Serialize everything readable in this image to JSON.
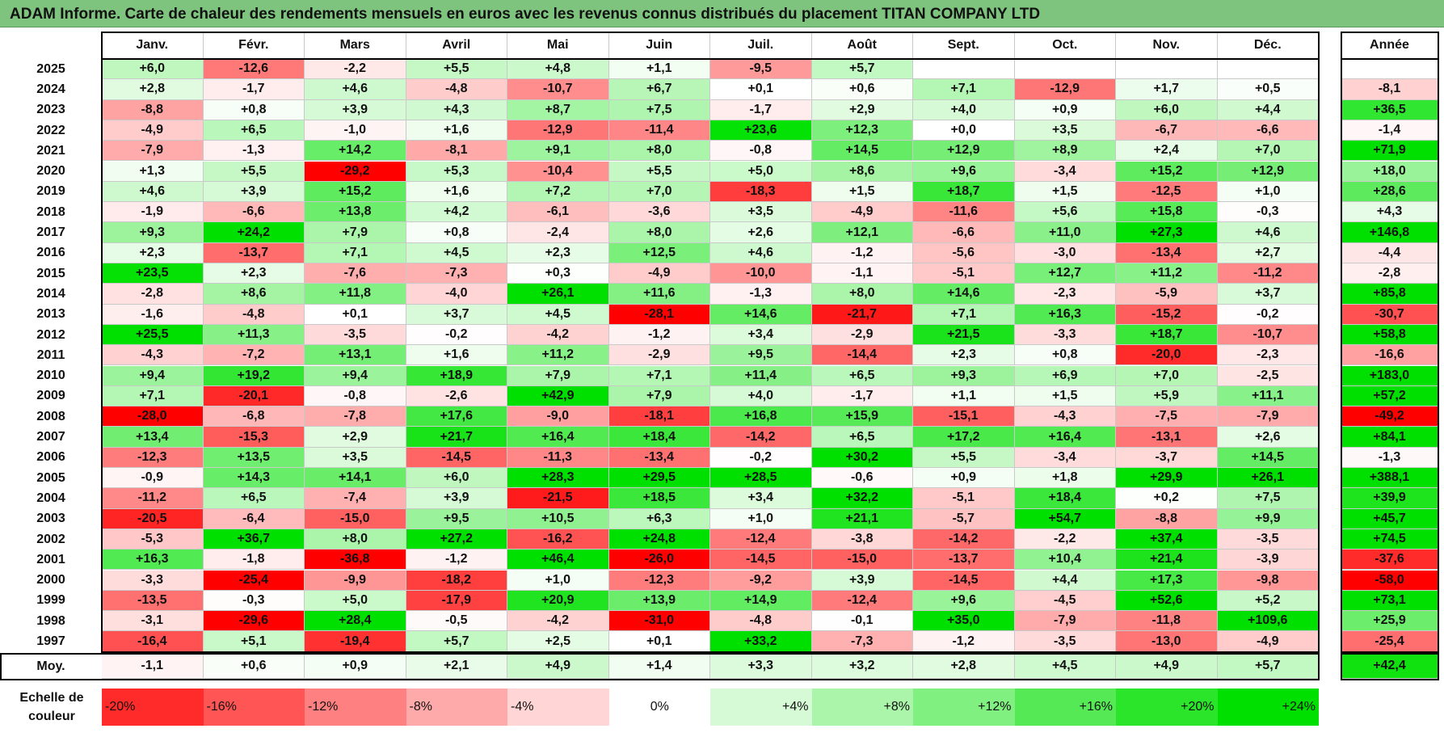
{
  "title": "ADAM Informe. Carte de chaleur des rendements mensuels en euros avec les revenus connus distribués du placement TITAN COMPANY LTD",
  "chart_data": {
    "type": "heatmap",
    "title": "ADAM Informe. Carte de chaleur des rendements mensuels en euros avec les revenus connus distribués du placement TITAN COMPANY LTD",
    "columns": [
      "Janv.",
      "Févr.",
      "Mars",
      "Avril",
      "Mai",
      "Juin",
      "Juil.",
      "Août",
      "Sept.",
      "Oct.",
      "Nov.",
      "Déc."
    ],
    "year_column": "Année",
    "rows": [
      {
        "year": "2025",
        "values": [
          "+6,0",
          "-12,6",
          "-2,2",
          "+5,5",
          "+4,8",
          "+1,1",
          "-9,5",
          "+5,7",
          "",
          "",
          "",
          ""
        ],
        "annual": ""
      },
      {
        "year": "2024",
        "values": [
          "+2,8",
          "-1,7",
          "+4,6",
          "-4,8",
          "-10,7",
          "+6,7",
          "+0,1",
          "+0,6",
          "+7,1",
          "-12,9",
          "+1,7",
          "+0,5"
        ],
        "annual": "-8,1"
      },
      {
        "year": "2023",
        "values": [
          "-8,8",
          "+0,8",
          "+3,9",
          "+4,3",
          "+8,7",
          "+7,5",
          "-1,7",
          "+2,9",
          "+4,0",
          "+0,9",
          "+6,0",
          "+4,4"
        ],
        "annual": "+36,5"
      },
      {
        "year": "2022",
        "values": [
          "-4,9",
          "+6,5",
          "-1,0",
          "+1,6",
          "-12,9",
          "-11,4",
          "+23,6",
          "+12,3",
          "+0,0",
          "+3,5",
          "-6,7",
          "-6,6"
        ],
        "annual": "-1,4"
      },
      {
        "year": "2021",
        "values": [
          "-7,9",
          "-1,3",
          "+14,2",
          "-8,1",
          "+9,1",
          "+8,0",
          "-0,8",
          "+14,5",
          "+12,9",
          "+8,9",
          "+2,4",
          "+7,0"
        ],
        "annual": "+71,9"
      },
      {
        "year": "2020",
        "values": [
          "+1,3",
          "+5,5",
          "-29,2",
          "+5,3",
          "-10,4",
          "+5,5",
          "+5,0",
          "+8,6",
          "+9,6",
          "-3,4",
          "+15,2",
          "+12,9"
        ],
        "annual": "+18,0"
      },
      {
        "year": "2019",
        "values": [
          "+4,6",
          "+3,9",
          "+15,2",
          "+1,6",
          "+7,2",
          "+7,0",
          "-18,3",
          "+1,5",
          "+18,7",
          "+1,5",
          "-12,5",
          "+1,0"
        ],
        "annual": "+28,6"
      },
      {
        "year": "2018",
        "values": [
          "-1,9",
          "-6,6",
          "+13,8",
          "+4,2",
          "-6,1",
          "-3,6",
          "+3,5",
          "-4,9",
          "-11,6",
          "+5,6",
          "+15,8",
          "-0,3"
        ],
        "annual": "+4,3"
      },
      {
        "year": "2017",
        "values": [
          "+9,3",
          "+24,2",
          "+7,9",
          "+0,8",
          "-2,4",
          "+8,0",
          "+2,6",
          "+12,1",
          "-6,6",
          "+11,0",
          "+27,3",
          "+4,6"
        ],
        "annual": "+146,8"
      },
      {
        "year": "2016",
        "values": [
          "+2,3",
          "-13,7",
          "+7,1",
          "+4,5",
          "+2,3",
          "+12,5",
          "+4,6",
          "-1,2",
          "-5,6",
          "-3,0",
          "-13,4",
          "+2,7"
        ],
        "annual": "-4,4"
      },
      {
        "year": "2015",
        "values": [
          "+23,5",
          "+2,3",
          "-7,6",
          "-7,3",
          "+0,3",
          "-4,9",
          "-10,0",
          "-1,1",
          "-5,1",
          "+12,7",
          "+11,2",
          "-11,2"
        ],
        "annual": "-2,8"
      },
      {
        "year": "2014",
        "values": [
          "-2,8",
          "+8,6",
          "+11,8",
          "-4,0",
          "+26,1",
          "+11,6",
          "-1,3",
          "+8,0",
          "+14,6",
          "-2,3",
          "-5,9",
          "+3,7"
        ],
        "annual": "+85,8"
      },
      {
        "year": "2013",
        "values": [
          "-1,6",
          "-4,8",
          "+0,1",
          "+3,7",
          "+4,5",
          "-28,1",
          "+14,6",
          "-21,7",
          "+7,1",
          "+16,3",
          "-15,2",
          "-0,2"
        ],
        "annual": "-30,7"
      },
      {
        "year": "2012",
        "values": [
          "+25,5",
          "+11,3",
          "-3,5",
          "-0,2",
          "-4,2",
          "-1,2",
          "+3,4",
          "-2,9",
          "+21,5",
          "-3,3",
          "+18,7",
          "-10,7"
        ],
        "annual": "+58,8"
      },
      {
        "year": "2011",
        "values": [
          "-4,3",
          "-7,2",
          "+13,1",
          "+1,6",
          "+11,2",
          "-2,9",
          "+9,5",
          "-14,4",
          "+2,3",
          "+0,8",
          "-20,0",
          "-2,3"
        ],
        "annual": "-16,6"
      },
      {
        "year": "2010",
        "values": [
          "+9,4",
          "+19,2",
          "+9,4",
          "+18,9",
          "+7,9",
          "+7,1",
          "+11,4",
          "+6,5",
          "+9,3",
          "+6,9",
          "+7,0",
          "-2,5"
        ],
        "annual": "+183,0"
      },
      {
        "year": "2009",
        "values": [
          "+7,1",
          "-20,1",
          "-0,8",
          "-2,6",
          "+42,9",
          "+7,9",
          "+4,0",
          "-1,7",
          "+1,1",
          "+1,5",
          "+5,9",
          "+11,1"
        ],
        "annual": "+57,2"
      },
      {
        "year": "2008",
        "values": [
          "-28,0",
          "-6,8",
          "-7,8",
          "+17,6",
          "-9,0",
          "-18,1",
          "+16,8",
          "+15,9",
          "-15,1",
          "-4,3",
          "-7,5",
          "-7,9"
        ],
        "annual": "-49,2"
      },
      {
        "year": "2007",
        "values": [
          "+13,4",
          "-15,3",
          "+2,9",
          "+21,7",
          "+16,4",
          "+18,4",
          "-14,2",
          "+6,5",
          "+17,2",
          "+16,4",
          "-13,1",
          "+2,6"
        ],
        "annual": "+84,1"
      },
      {
        "year": "2006",
        "values": [
          "-12,3",
          "+13,5",
          "+3,5",
          "-14,5",
          "-11,3",
          "-13,4",
          "-0,2",
          "+30,2",
          "+5,5",
          "-3,4",
          "-3,7",
          "+14,5"
        ],
        "annual": "-1,3"
      },
      {
        "year": "2005",
        "values": [
          "-0,9",
          "+14,3",
          "+14,1",
          "+6,0",
          "+28,3",
          "+29,5",
          "+28,5",
          "-0,6",
          "+0,9",
          "+1,8",
          "+29,9",
          "+26,1"
        ],
        "annual": "+388,1"
      },
      {
        "year": "2004",
        "values": [
          "-11,2",
          "+6,5",
          "-7,4",
          "+3,9",
          "-21,5",
          "+18,5",
          "+3,4",
          "+32,2",
          "-5,1",
          "+18,4",
          "+0,2",
          "+7,5"
        ],
        "annual": "+39,9"
      },
      {
        "year": "2003",
        "values": [
          "-20,5",
          "-6,4",
          "-15,0",
          "+9,5",
          "+10,5",
          "+6,3",
          "+1,0",
          "+21,1",
          "-5,7",
          "+54,7",
          "-8,8",
          "+9,9"
        ],
        "annual": "+45,7"
      },
      {
        "year": "2002",
        "values": [
          "-5,3",
          "+36,7",
          "+8,0",
          "+27,2",
          "-16,2",
          "+24,8",
          "-12,4",
          "-3,8",
          "-14,2",
          "-2,2",
          "+37,4",
          "-3,5"
        ],
        "annual": "+74,5"
      },
      {
        "year": "2001",
        "values": [
          "+16,3",
          "-1,8",
          "-36,8",
          "-1,2",
          "+46,4",
          "-26,0",
          "-14,5",
          "-15,0",
          "-13,7",
          "+10,4",
          "+21,4",
          "-3,9"
        ],
        "annual": "-37,6"
      },
      {
        "year": "2000",
        "values": [
          "-3,3",
          "-25,4",
          "-9,9",
          "-18,2",
          "+1,0",
          "-12,3",
          "-9,2",
          "+3,9",
          "-14,5",
          "+4,4",
          "+17,3",
          "-9,8"
        ],
        "annual": "-58,0"
      },
      {
        "year": "1999",
        "values": [
          "-13,5",
          "-0,3",
          "+5,0",
          "-17,9",
          "+20,9",
          "+13,9",
          "+14,9",
          "-12,4",
          "+9,6",
          "-4,5",
          "+52,6",
          "+5,2"
        ],
        "annual": "+73,1"
      },
      {
        "year": "1998",
        "values": [
          "-3,1",
          "-29,6",
          "+28,4",
          "-0,5",
          "-4,2",
          "-31,0",
          "-4,8",
          "-0,1",
          "+35,0",
          "-7,9",
          "-11,8",
          "+109,6"
        ],
        "annual": "+25,9"
      },
      {
        "year": "1997",
        "values": [
          "-16,4",
          "+5,1",
          "-19,4",
          "+5,7",
          "+2,5",
          "+0,1",
          "+33,2",
          "-7,3",
          "-1,2",
          "-3,5",
          "-13,0",
          "-4,9"
        ],
        "annual": "-25,4"
      }
    ],
    "average": {
      "label": "Moy.",
      "values": [
        "-1,1",
        "+0,6",
        "+0,9",
        "+2,1",
        "+4,9",
        "+1,4",
        "+3,3",
        "+3,2",
        "+2,8",
        "+4,5",
        "+4,9",
        "+5,7"
      ],
      "annual": "+42,4"
    },
    "scale": {
      "label": "Echelle de couleur",
      "items": [
        "-20%",
        "-16%",
        "-12%",
        "-8%",
        "-4%",
        "0%",
        "+4%",
        "+8%",
        "+12%",
        "+16%",
        "+20%",
        "+24%"
      ]
    },
    "colors": {
      "negative_max": "#ff0000",
      "neutral": "#ffffff",
      "positive_max": "#00e000",
      "title_bar": "#7ec47e"
    }
  }
}
